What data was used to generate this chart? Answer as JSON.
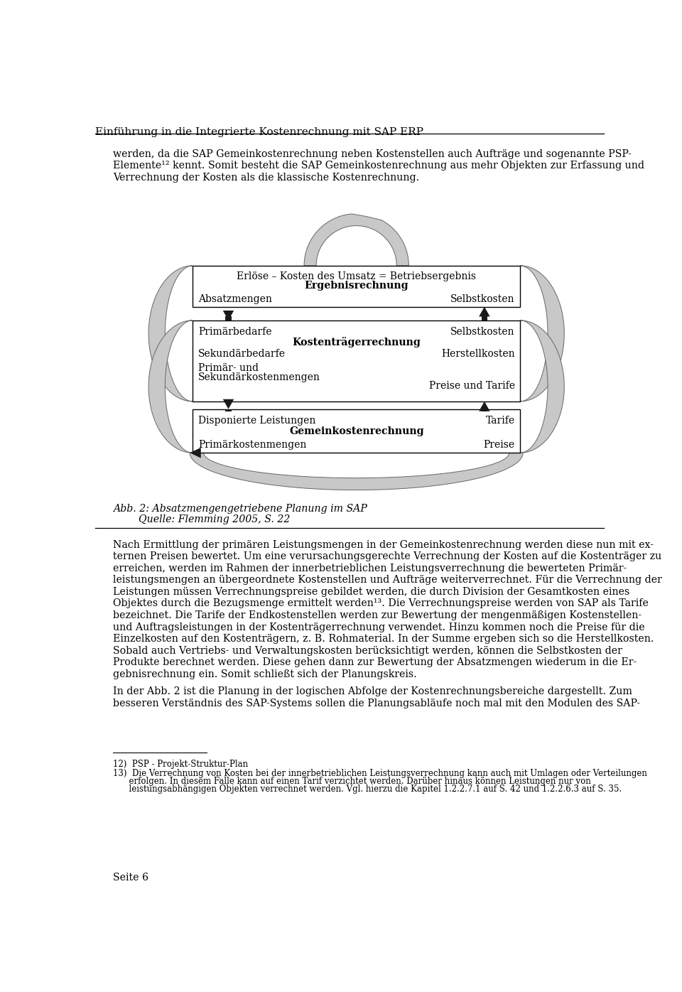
{
  "header": "Einführung in die Integrierte Kostenrechnung mit SAP ERP",
  "page_bg": "#ffffff",
  "text_color": "#000000",
  "para1_lines": [
    "werden, da die SAP Gemeinkostenrechnung neben Kostenstellen auch Aufträge und sogenannte PSP-",
    "Elemente¹² kennt. Somit besteht die SAP Gemeinkostenrechnung aus mehr Objekten zur Erfassung und",
    "Verrechnung der Kosten als die klassische Kostenrechnung."
  ],
  "box1_title_line1": "Erlöse – Kosten des Umsatz = Betriebsergebnis",
  "box1_title_line2": "Ergebnisrechnung",
  "box1_left": "Absatzmengen",
  "box1_right": "Selbstkosten",
  "box2_title": "Kostenträgerrechnung",
  "box2_row1_left": "Primärbedarfe",
  "box2_row1_right": "Selbstkosten",
  "box2_row2_left": "Sekundärbedarfe",
  "box2_row2_right": "Herstellkosten",
  "box2_row3_left_1": "Primär- und",
  "box2_row3_left_2": "Sekundärkostenmengen",
  "box2_row3_right": "Preise und Tarife",
  "box3_title": "Gemeinkostenrechnung",
  "box3_left": "Disponierte Leistungen",
  "box3_right": "Tarife",
  "box3_bottom_left": "Primärkostenmengen",
  "box3_bottom_right": "Preise",
  "caption_line1": "Abb. 2: Absatzmengengetriebene Planung im SAP",
  "caption_line2": "        Quelle: Flemming 2005, S. 22",
  "para2_lines": [
    "Nach Ermittlung der primären Leistungsmengen in der Gemeinkostenrechnung werden diese nun mit ex-",
    "ternen Preisen bewertet. Um eine verursachungsgerechte Verrechnung der Kosten auf die Kostenträger zu",
    "erreichen, werden im Rahmen der innerbetrieblichen Leistungsverrechnung die bewerteten Primär-",
    "leistungsmengen an übergeordnete Kostenstellen und Aufträge weiterverrechnet. Für die Verrechnung der",
    "Leistungen müssen Verrechnungspreise gebildet werden, die durch Division der Gesamtkosten eines",
    "Objektes durch die Bezugsmenge ermittelt werden¹³. Die Verrechnungspreise werden von SAP als Tarife",
    "bezeichnet. Die Tarife der Endkostenstellen werden zur Bewertung der mengenmäßigen Kostenstellen-",
    "und Auftragsleistungen in der Kostenträgerrechnung verwendet. Hinzu kommen noch die Preise für die",
    "Einzelkosten auf den Kostenträgern, z. B. Rohmaterial. In der Summe ergeben sich so die Herstellkosten.",
    "Sobald auch Vertriebs- und Verwaltungskosten berücksichtigt werden, können die Selbstkosten der",
    "Produkte berechnet werden. Diese gehen dann zur Bewertung der Absatzmengen wiederum in die Er-",
    "gebnisrechnung ein. Somit schließt sich der Planungskreis."
  ],
  "para3_lines": [
    "In der Abb. 2 ist die Planung in der logischen Abfolge der Kostenrechnungsbereiche dargestellt. Zum",
    "besseren Verständnis des SAP-Systems sollen die Planungsabläufe noch mal mit den Modulen des SAP-"
  ],
  "footnote12": "12)  PSP - Projekt-Struktur-Plan",
  "footnote13_lines": [
    "13)  Die Verrechnung von Kosten bei der innerbetrieblichen Leistungsverrechnung kann auch mit Umlagen oder Verteilungen",
    "      erfolgen. In diesem Falle kann auf einen Tarif verzichtet werden. Darüber hinaus können Leistungen nur von",
    "      leistungsabhängigen Objekten verrechnet werden. Vgl. hierzu die Kapitel 1.2.2.7.1 auf S. 42 und 1.2.2.6.3 auf S. 35."
  ],
  "page_num": "Seite 6",
  "gray": "#c8c8c8",
  "dark_gray": "#a0a0a0",
  "arrow_black": "#1a1a1a"
}
